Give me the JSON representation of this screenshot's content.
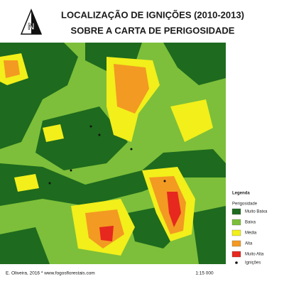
{
  "header": {
    "title_lines": [
      "LOCALIZAÇÃO DE IGNIÇÕES (2010-2013)",
      "SOBRE A CARTA DE PERIGOSIDADE"
    ]
  },
  "legend": {
    "title": "Legenda",
    "subtitle": "Perigosidade",
    "classes": [
      {
        "label": "Muito Baixa",
        "color": "#1e6a1e"
      },
      {
        "label": "Baixa",
        "color": "#7dbf3a"
      },
      {
        "label": "Média",
        "color": "#f2ef1a"
      },
      {
        "label": "Alta",
        "color": "#f39a22"
      },
      {
        "label": "Muito Alta",
        "color": "#e6281e"
      }
    ],
    "point_label": "Ignições"
  },
  "footer": {
    "credit": "E. Oliveira, 2016 * www.fogosflorestais.com",
    "scale": "1:15 000"
  }
}
